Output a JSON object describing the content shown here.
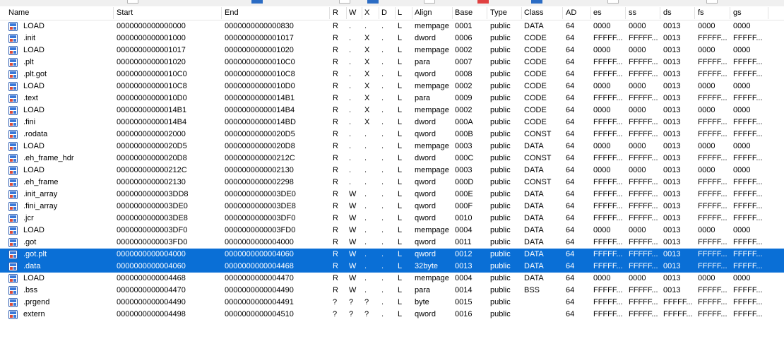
{
  "columns": [
    "Name",
    "Start",
    "End",
    "R",
    "W",
    "X",
    "D",
    "L",
    "Align",
    "Base",
    "Type",
    "Class",
    "AD",
    "es",
    "ss",
    "ds",
    "fs",
    "gs"
  ],
  "icon": "segment-icon",
  "colors": {
    "selection": "#0a6fd6",
    "selection_text": "#ffffff"
  },
  "rows": [
    {
      "name": "LOAD",
      "start": "0000000000000000",
      "end": "0000000000000830",
      "r": "R",
      "w": ".",
      "x": ".",
      "d": ".",
      "l": "L",
      "align": "mempage",
      "base": "0001",
      "type": "public",
      "class": "DATA",
      "ad": "64",
      "es": "0000",
      "ss": "0000",
      "ds": "0013",
      "fs": "0000",
      "gs": "0000",
      "selected": false
    },
    {
      "name": ".init",
      "start": "0000000000001000",
      "end": "0000000000001017",
      "r": "R",
      "w": ".",
      "x": "X",
      "d": ".",
      "l": "L",
      "align": "dword",
      "base": "0006",
      "type": "public",
      "class": "CODE",
      "ad": "64",
      "es": "FFFFF...",
      "ss": "FFFFF...",
      "ds": "0013",
      "fs": "FFFFF...",
      "gs": "FFFFF...",
      "selected": false
    },
    {
      "name": "LOAD",
      "start": "0000000000001017",
      "end": "0000000000001020",
      "r": "R",
      "w": ".",
      "x": "X",
      "d": ".",
      "l": "L",
      "align": "mempage",
      "base": "0002",
      "type": "public",
      "class": "CODE",
      "ad": "64",
      "es": "0000",
      "ss": "0000",
      "ds": "0013",
      "fs": "0000",
      "gs": "0000",
      "selected": false
    },
    {
      "name": ".plt",
      "start": "0000000000001020",
      "end": "00000000000010C0",
      "r": "R",
      "w": ".",
      "x": "X",
      "d": ".",
      "l": "L",
      "align": "para",
      "base": "0007",
      "type": "public",
      "class": "CODE",
      "ad": "64",
      "es": "FFFFF...",
      "ss": "FFFFF...",
      "ds": "0013",
      "fs": "FFFFF...",
      "gs": "FFFFF...",
      "selected": false
    },
    {
      "name": ".plt.got",
      "start": "00000000000010C0",
      "end": "00000000000010C8",
      "r": "R",
      "w": ".",
      "x": "X",
      "d": ".",
      "l": "L",
      "align": "qword",
      "base": "0008",
      "type": "public",
      "class": "CODE",
      "ad": "64",
      "es": "FFFFF...",
      "ss": "FFFFF...",
      "ds": "0013",
      "fs": "FFFFF...",
      "gs": "FFFFF...",
      "selected": false
    },
    {
      "name": "LOAD",
      "start": "00000000000010C8",
      "end": "00000000000010D0",
      "r": "R",
      "w": ".",
      "x": "X",
      "d": ".",
      "l": "L",
      "align": "mempage",
      "base": "0002",
      "type": "public",
      "class": "CODE",
      "ad": "64",
      "es": "0000",
      "ss": "0000",
      "ds": "0013",
      "fs": "0000",
      "gs": "0000",
      "selected": false
    },
    {
      "name": ".text",
      "start": "00000000000010D0",
      "end": "00000000000014B1",
      "r": "R",
      "w": ".",
      "x": "X",
      "d": ".",
      "l": "L",
      "align": "para",
      "base": "0009",
      "type": "public",
      "class": "CODE",
      "ad": "64",
      "es": "FFFFF...",
      "ss": "FFFFF...",
      "ds": "0013",
      "fs": "FFFFF...",
      "gs": "FFFFF...",
      "selected": false
    },
    {
      "name": "LOAD",
      "start": "00000000000014B1",
      "end": "00000000000014B4",
      "r": "R",
      "w": ".",
      "x": "X",
      "d": ".",
      "l": "L",
      "align": "mempage",
      "base": "0002",
      "type": "public",
      "class": "CODE",
      "ad": "64",
      "es": "0000",
      "ss": "0000",
      "ds": "0013",
      "fs": "0000",
      "gs": "0000",
      "selected": false
    },
    {
      "name": ".fini",
      "start": "00000000000014B4",
      "end": "00000000000014BD",
      "r": "R",
      "w": ".",
      "x": "X",
      "d": ".",
      "l": "L",
      "align": "dword",
      "base": "000A",
      "type": "public",
      "class": "CODE",
      "ad": "64",
      "es": "FFFFF...",
      "ss": "FFFFF...",
      "ds": "0013",
      "fs": "FFFFF...",
      "gs": "FFFFF...",
      "selected": false
    },
    {
      "name": ".rodata",
      "start": "0000000000002000",
      "end": "00000000000020D5",
      "r": "R",
      "w": ".",
      "x": ".",
      "d": ".",
      "l": "L",
      "align": "qword",
      "base": "000B",
      "type": "public",
      "class": "CONST",
      "ad": "64",
      "es": "FFFFF...",
      "ss": "FFFFF...",
      "ds": "0013",
      "fs": "FFFFF...",
      "gs": "FFFFF...",
      "selected": false
    },
    {
      "name": "LOAD",
      "start": "00000000000020D5",
      "end": "00000000000020D8",
      "r": "R",
      "w": ".",
      "x": ".",
      "d": ".",
      "l": "L",
      "align": "mempage",
      "base": "0003",
      "type": "public",
      "class": "DATA",
      "ad": "64",
      "es": "0000",
      "ss": "0000",
      "ds": "0013",
      "fs": "0000",
      "gs": "0000",
      "selected": false
    },
    {
      "name": ".eh_frame_hdr",
      "start": "00000000000020D8",
      "end": "000000000000212C",
      "r": "R",
      "w": ".",
      "x": ".",
      "d": ".",
      "l": "L",
      "align": "dword",
      "base": "000C",
      "type": "public",
      "class": "CONST",
      "ad": "64",
      "es": "FFFFF...",
      "ss": "FFFFF...",
      "ds": "0013",
      "fs": "FFFFF...",
      "gs": "FFFFF...",
      "selected": false
    },
    {
      "name": "LOAD",
      "start": "000000000000212C",
      "end": "0000000000002130",
      "r": "R",
      "w": ".",
      "x": ".",
      "d": ".",
      "l": "L",
      "align": "mempage",
      "base": "0003",
      "type": "public",
      "class": "DATA",
      "ad": "64",
      "es": "0000",
      "ss": "0000",
      "ds": "0013",
      "fs": "0000",
      "gs": "0000",
      "selected": false
    },
    {
      "name": ".eh_frame",
      "start": "0000000000002130",
      "end": "0000000000002298",
      "r": "R",
      "w": ".",
      "x": ".",
      "d": ".",
      "l": "L",
      "align": "qword",
      "base": "000D",
      "type": "public",
      "class": "CONST",
      "ad": "64",
      "es": "FFFFF...",
      "ss": "FFFFF...",
      "ds": "0013",
      "fs": "FFFFF...",
      "gs": "FFFFF...",
      "selected": false
    },
    {
      "name": ".init_array",
      "start": "0000000000003DD8",
      "end": "0000000000003DE0",
      "r": "R",
      "w": "W",
      "x": ".",
      "d": ".",
      "l": "L",
      "align": "qword",
      "base": "000E",
      "type": "public",
      "class": "DATA",
      "ad": "64",
      "es": "FFFFF...",
      "ss": "FFFFF...",
      "ds": "0013",
      "fs": "FFFFF...",
      "gs": "FFFFF...",
      "selected": false
    },
    {
      "name": ".fini_array",
      "start": "0000000000003DE0",
      "end": "0000000000003DE8",
      "r": "R",
      "w": "W",
      "x": ".",
      "d": ".",
      "l": "L",
      "align": "qword",
      "base": "000F",
      "type": "public",
      "class": "DATA",
      "ad": "64",
      "es": "FFFFF...",
      "ss": "FFFFF...",
      "ds": "0013",
      "fs": "FFFFF...",
      "gs": "FFFFF...",
      "selected": false
    },
    {
      "name": ".jcr",
      "start": "0000000000003DE8",
      "end": "0000000000003DF0",
      "r": "R",
      "w": "W",
      "x": ".",
      "d": ".",
      "l": "L",
      "align": "qword",
      "base": "0010",
      "type": "public",
      "class": "DATA",
      "ad": "64",
      "es": "FFFFF...",
      "ss": "FFFFF...",
      "ds": "0013",
      "fs": "FFFFF...",
      "gs": "FFFFF...",
      "selected": false
    },
    {
      "name": "LOAD",
      "start": "0000000000003DF0",
      "end": "0000000000003FD0",
      "r": "R",
      "w": "W",
      "x": ".",
      "d": ".",
      "l": "L",
      "align": "mempage",
      "base": "0004",
      "type": "public",
      "class": "DATA",
      "ad": "64",
      "es": "0000",
      "ss": "0000",
      "ds": "0013",
      "fs": "0000",
      "gs": "0000",
      "selected": false
    },
    {
      "name": ".got",
      "start": "0000000000003FD0",
      "end": "0000000000004000",
      "r": "R",
      "w": "W",
      "x": ".",
      "d": ".",
      "l": "L",
      "align": "qword",
      "base": "0011",
      "type": "public",
      "class": "DATA",
      "ad": "64",
      "es": "FFFFF...",
      "ss": "FFFFF...",
      "ds": "0013",
      "fs": "FFFFF...",
      "gs": "FFFFF...",
      "selected": false
    },
    {
      "name": ".got.plt",
      "start": "0000000000004000",
      "end": "0000000000004060",
      "r": "R",
      "w": "W",
      "x": ".",
      "d": ".",
      "l": "L",
      "align": "qword",
      "base": "0012",
      "type": "public",
      "class": "DATA",
      "ad": "64",
      "es": "FFFFF...",
      "ss": "FFFFF...",
      "ds": "0013",
      "fs": "FFFFF...",
      "gs": "FFFFF...",
      "selected": true
    },
    {
      "name": ".data",
      "start": "0000000000004060",
      "end": "0000000000004468",
      "r": "R",
      "w": "W",
      "x": ".",
      "d": ".",
      "l": "L",
      "align": "32byte",
      "base": "0013",
      "type": "public",
      "class": "DATA",
      "ad": "64",
      "es": "FFFFF...",
      "ss": "FFFFF...",
      "ds": "0013",
      "fs": "FFFFF...",
      "gs": "FFFFF...",
      "selected": true
    },
    {
      "name": "LOAD",
      "start": "0000000000004468",
      "end": "0000000000004470",
      "r": "R",
      "w": "W",
      "x": ".",
      "d": ".",
      "l": "L",
      "align": "mempage",
      "base": "0004",
      "type": "public",
      "class": "DATA",
      "ad": "64",
      "es": "0000",
      "ss": "0000",
      "ds": "0013",
      "fs": "0000",
      "gs": "0000",
      "selected": false
    },
    {
      "name": ".bss",
      "start": "0000000000004470",
      "end": "0000000000004490",
      "r": "R",
      "w": "W",
      "x": ".",
      "d": ".",
      "l": "L",
      "align": "para",
      "base": "0014",
      "type": "public",
      "class": "BSS",
      "ad": "64",
      "es": "FFFFF...",
      "ss": "FFFFF...",
      "ds": "0013",
      "fs": "FFFFF...",
      "gs": "FFFFF...",
      "selected": false
    },
    {
      "name": ".prgend",
      "start": "0000000000004490",
      "end": "0000000000004491",
      "r": "?",
      "w": "?",
      "x": "?",
      "d": ".",
      "l": "L",
      "align": "byte",
      "base": "0015",
      "type": "public",
      "class": "",
      "ad": "64",
      "es": "FFFFF...",
      "ss": "FFFFF...",
      "ds": "FFFFF...",
      "fs": "FFFFF...",
      "gs": "FFFFF...",
      "selected": false
    },
    {
      "name": "extern",
      "start": "0000000000004498",
      "end": "0000000000004510",
      "r": "?",
      "w": "?",
      "x": "?",
      "d": ".",
      "l": "L",
      "align": "qword",
      "base": "0016",
      "type": "public",
      "class": "",
      "ad": "64",
      "es": "FFFFF...",
      "ss": "FFFFF...",
      "ds": "FFFFF...",
      "fs": "FFFFF...",
      "gs": "FFFFF...",
      "selected": false
    }
  ]
}
